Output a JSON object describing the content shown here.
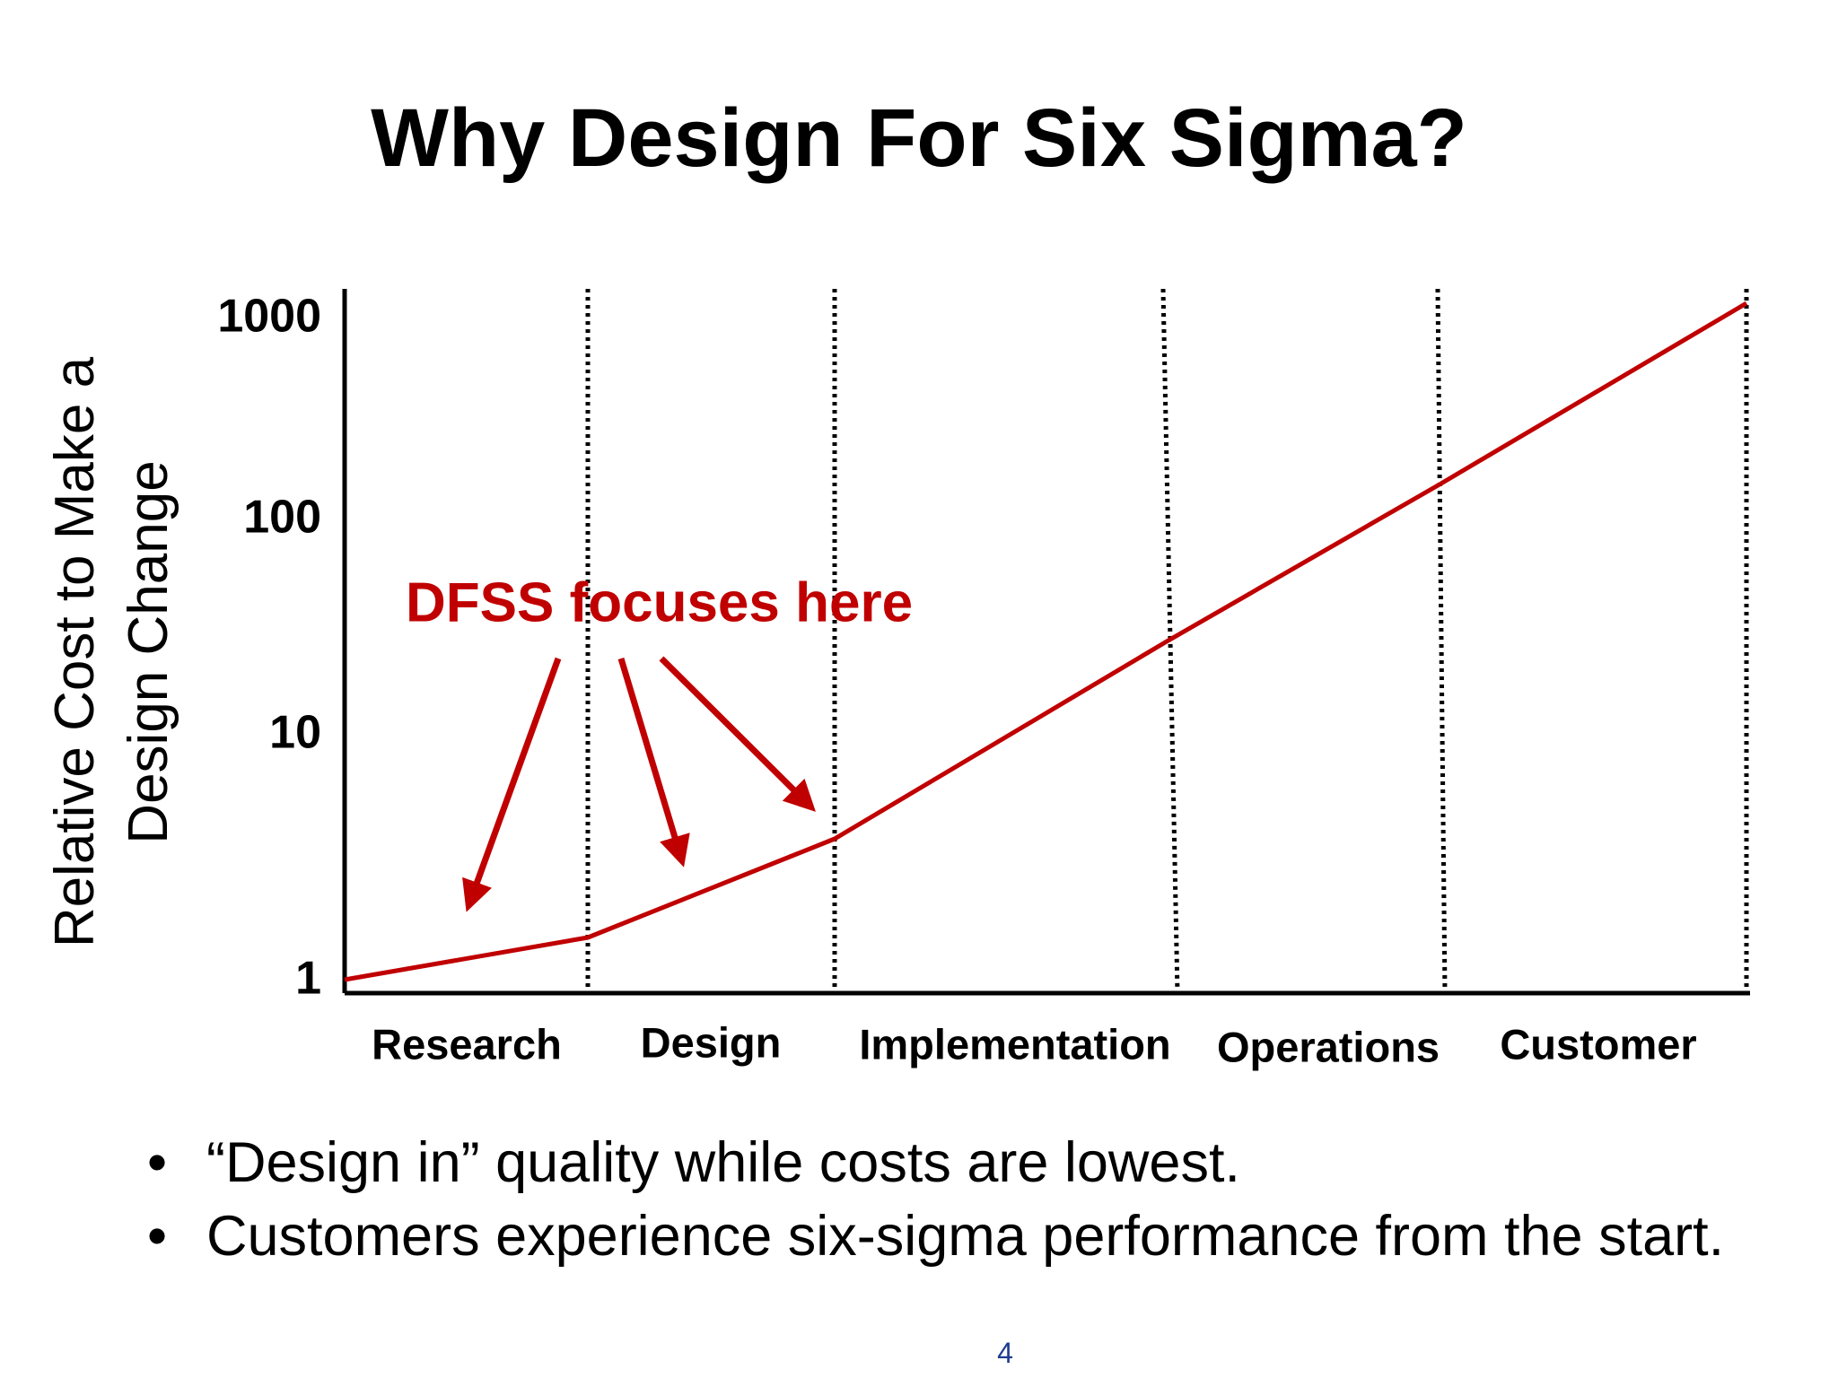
{
  "slide": {
    "title": "Why Design For Six Sigma?",
    "ylabel_line1": "Relative Cost to Make a",
    "ylabel_line2": "Design Change",
    "bullets": [
      "“Design in” quality while costs are lowest.",
      "Customers experience six-sigma performance from the start."
    ],
    "page_number": "4"
  },
  "chart_data": {
    "type": "line",
    "title": "",
    "xlabel": "",
    "ylabel": "Relative Cost to Make a Design Change",
    "y_scale": "log",
    "ylim": [
      1,
      1000
    ],
    "y_ticks": [
      "1",
      "10",
      "100",
      "1000"
    ],
    "categories": [
      "Research",
      "Design",
      "Implementation",
      "Operations",
      "Customer"
    ],
    "boundary_values": [
      1,
      1.4,
      3.5,
      30,
      150,
      1100
    ],
    "grid": "vertical dotted lines at phase boundaries",
    "annotation": {
      "text": "DFSS focuses here",
      "color": "#c00000",
      "arrow_targets": [
        "Research",
        "Design",
        "Design/Implementation boundary"
      ]
    },
    "line_color": "#c00000"
  }
}
